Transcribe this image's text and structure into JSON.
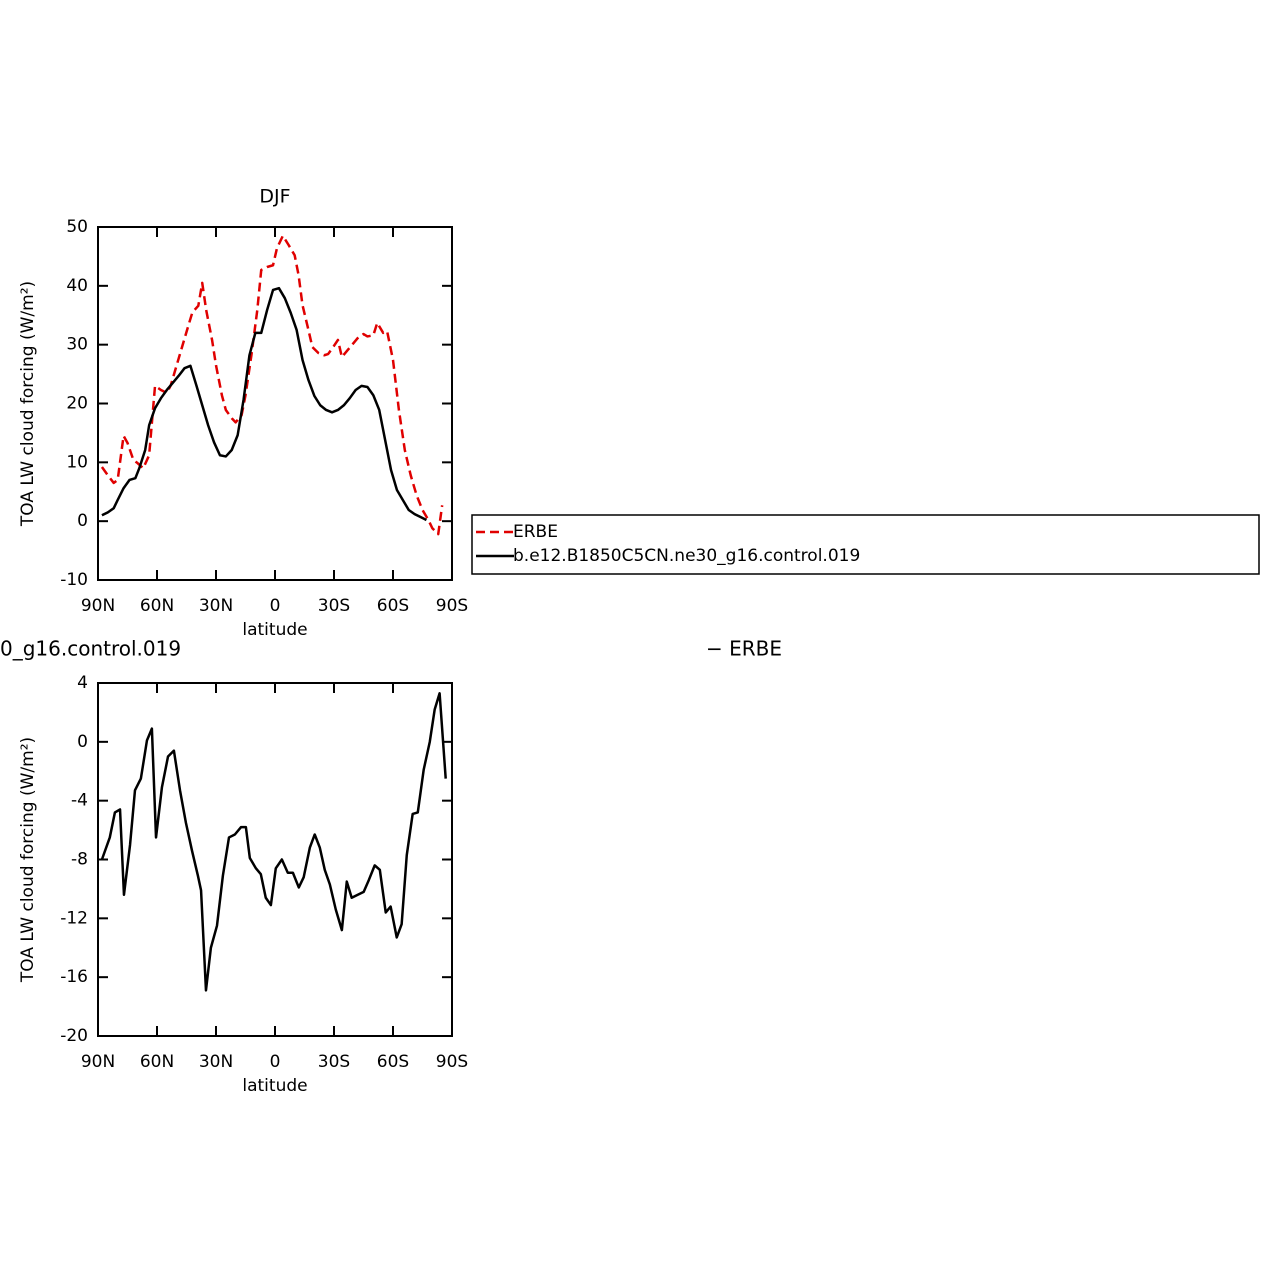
{
  "chart_data": [
    {
      "type": "line",
      "title": "DJF",
      "x_label": "latitude",
      "y_label": "TOA LW cloud forcing (W/m²)",
      "xlim": [
        90,
        -90
      ],
      "ylim": [
        -10,
        50
      ],
      "xticks": [
        {
          "value": 90,
          "label": "90N"
        },
        {
          "value": 60,
          "label": "60N"
        },
        {
          "value": 30,
          "label": "30N"
        },
        0,
        {
          "value": -30,
          "label": "30S"
        },
        {
          "value": -60,
          "label": "60S"
        },
        {
          "value": -90,
          "label": "90S"
        }
      ],
      "yticks": [
        -10,
        0,
        10,
        20,
        30,
        40,
        50
      ],
      "legend": "outside-right",
      "series": [
        {
          "name": "ERBE",
          "color": "#e00000",
          "linestyle": "dashed",
          "x": [
            88,
            85,
            82,
            80,
            77,
            75,
            72,
            70,
            67,
            64,
            61,
            58,
            55,
            53,
            50,
            47,
            44,
            42,
            39,
            37,
            35,
            32,
            30,
            27,
            25,
            22,
            20,
            17,
            15,
            12,
            9,
            7,
            4,
            1,
            -1,
            -4,
            -7,
            -10,
            -12,
            -14,
            -17,
            -19,
            -22,
            -25,
            -27,
            -30,
            -32,
            -34,
            -37,
            -40,
            -42,
            -45,
            -47,
            -50,
            -52,
            -55,
            -57,
            -60,
            -63,
            -66,
            -69,
            -72,
            -75,
            -78,
            -80,
            -83,
            -85
          ],
          "values": [
            9.2,
            7.8,
            6.5,
            7.0,
            14.5,
            13.3,
            10.4,
            9.9,
            9.0,
            11.2,
            23,
            22.3,
            21.8,
            23.1,
            26.5,
            29.9,
            33.3,
            35.5,
            36.6,
            40.5,
            35.9,
            30.8,
            26.5,
            21.4,
            18.9,
            17.5,
            16.8,
            18,
            21.4,
            28.2,
            35.9,
            42.7,
            43.2,
            43.5,
            46.4,
            48.5,
            46.9,
            45.2,
            41.8,
            36.7,
            32.5,
            29.6,
            28.6,
            28.2,
            28.4,
            29.8,
            30.8,
            27.9,
            29.1,
            30.3,
            31.1,
            31.8,
            31.4,
            31.6,
            33.7,
            32.0,
            32.3,
            27.4,
            18.9,
            12.1,
            7.8,
            4.4,
            1.9,
            0.2,
            -1.2,
            -2.2,
            2.7
          ]
        },
        {
          "name": "b.e12.B1850C5CN.ne30_g16.control.019",
          "color": "#000000",
          "linestyle": "solid",
          "x": [
            88,
            85,
            82,
            80,
            77,
            74,
            71,
            69,
            66,
            64,
            61,
            58,
            55,
            52,
            49,
            46,
            43,
            40,
            37,
            34,
            31,
            28,
            25,
            22,
            19,
            16,
            13,
            10,
            7,
            4,
            1,
            -2,
            -5,
            -8,
            -11,
            -14,
            -17,
            -20,
            -23,
            -26,
            -29,
            -32,
            -35,
            -38,
            -41,
            -44,
            -47,
            -50,
            -53,
            -56,
            -59,
            -62,
            -65,
            -68,
            -71,
            -74,
            -77
          ],
          "values": [
            1.0,
            1.5,
            2.2,
            3.6,
            5.6,
            7.0,
            7.3,
            9.0,
            12.1,
            16.3,
            19.2,
            20.9,
            22.3,
            23.5,
            24.7,
            26.0,
            26.4,
            23.1,
            19.7,
            16.3,
            13.4,
            11.2,
            11.0,
            12.1,
            14.6,
            20.6,
            28.2,
            32.0,
            32.0,
            35.9,
            39.3,
            39.6,
            37.9,
            35.4,
            32.5,
            27.4,
            24.0,
            21.3,
            19.7,
            18.9,
            18.5,
            18.9,
            19.7,
            20.9,
            22.3,
            23.0,
            22.8,
            21.4,
            18.9,
            13.8,
            8.7,
            5.3,
            3.6,
            1.9,
            1.2,
            0.7,
            0.2
          ]
        }
      ]
    },
    {
      "type": "line",
      "title_fragments": [
        "0_g16.control.019",
        "− ERBE"
      ],
      "x_label": "latitude",
      "y_label": "TOA LW cloud forcing (W/m²)",
      "xlim": [
        90,
        -90
      ],
      "ylim": [
        -20,
        4
      ],
      "xticks": [
        {
          "value": 90,
          "label": "90N"
        },
        {
          "value": 60,
          "label": "60N"
        },
        {
          "value": 30,
          "label": "30N"
        },
        0,
        {
          "value": -30,
          "label": "30S"
        },
        {
          "value": -60,
          "label": "60S"
        },
        {
          "value": -90,
          "label": "90S"
        }
      ],
      "yticks": [
        -20,
        -16,
        -12,
        -8,
        -4,
        0,
        4
      ],
      "series": [
        {
          "color": "#000000",
          "linestyle": "solid",
          "x": [
            88,
            84,
            81.4,
            78.8,
            76.8,
            73.7,
            71.2,
            68.2,
            65.1,
            62.6,
            60.5,
            57.5,
            54.4,
            51.4,
            48.3,
            45.3,
            42.2,
            39.2,
            37.6,
            35.1,
            32.6,
            29.5,
            26.5,
            23.4,
            20.4,
            17.3,
            14.8,
            12.8,
            9.7,
            7.2,
            4.7,
            2.1,
            -0.4,
            -3.5,
            -6.5,
            -9.1,
            -12.1,
            -14.6,
            -17.7,
            -20.2,
            -22.8,
            -25.3,
            -27.9,
            -30.9,
            -34,
            -36.5,
            -39,
            -42.1,
            -45.1,
            -47.7,
            -50.7,
            -53.3,
            -56.3,
            -58.8,
            -61.9,
            -64.4,
            -67,
            -70,
            -72.6,
            -75.6,
            -78.7,
            -81.2,
            -83.7,
            -86.8
          ],
          "values": [
            -8.0,
            -6.5,
            -4.8,
            -4.6,
            -10.4,
            -7.0,
            -3.3,
            -2.5,
            0.1,
            0.9,
            -6.5,
            -3.1,
            -1.0,
            -0.6,
            -3.3,
            -5.5,
            -7.4,
            -9.1,
            -10.1,
            -16.9,
            -14.0,
            -12.5,
            -9.1,
            -6.5,
            -6.3,
            -5.8,
            -5.8,
            -7.9,
            -8.6,
            -9.0,
            -10.6,
            -11.1,
            -8.6,
            -8.0,
            -8.9,
            -8.9,
            -9.9,
            -9.2,
            -7.2,
            -6.3,
            -7.2,
            -8.7,
            -9.7,
            -11.4,
            -12.8,
            -9.5,
            -10.6,
            -10.4,
            -10.2,
            -9.4,
            -8.4,
            -8.7,
            -11.6,
            -11.2,
            -13.3,
            -12.4,
            -7.7,
            -4.9,
            -4.8,
            -1.9,
            0,
            2.2,
            3.3,
            -2.5
          ]
        }
      ]
    }
  ]
}
